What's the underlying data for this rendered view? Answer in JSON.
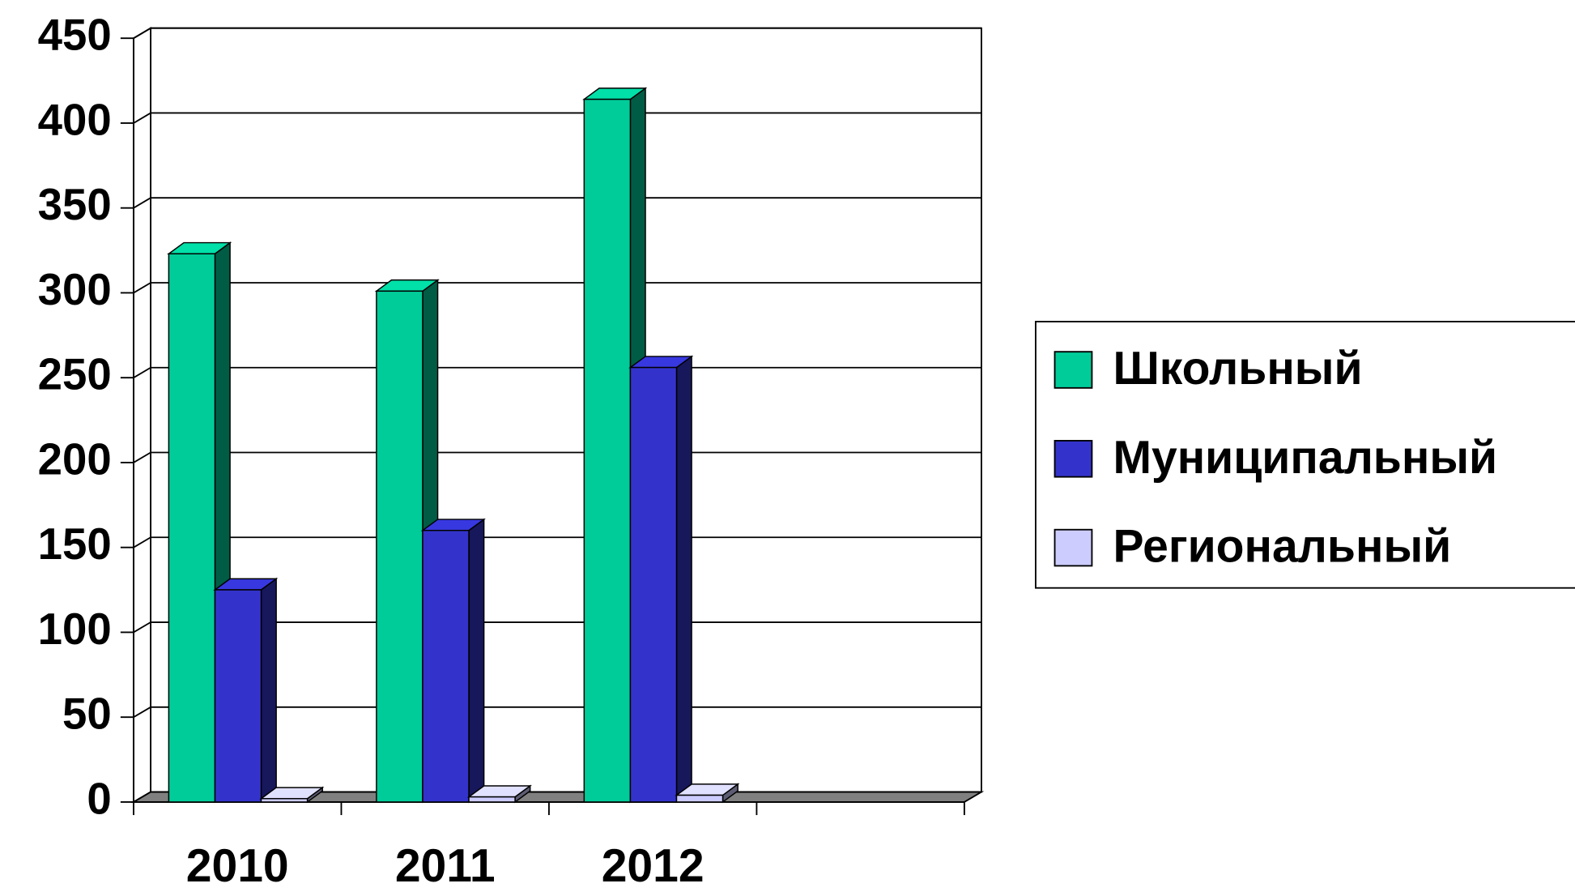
{
  "chart_data": {
    "type": "bar3d",
    "categories": [
      "2010",
      "2011",
      "2012",
      null
    ],
    "series": [
      {
        "name": "Школьный",
        "color": "#00cc99",
        "values": [
          323,
          301,
          414,
          null
        ]
      },
      {
        "name": "Муниципальный",
        "color": "#3333cc",
        "values": [
          125,
          160,
          256,
          null
        ]
      },
      {
        "name": "Региональный",
        "color": "#ccccff",
        "values": [
          2,
          3,
          4,
          null
        ]
      }
    ],
    "ylim": [
      0,
      450
    ],
    "yticks": [
      0,
      50,
      100,
      150,
      200,
      250,
      300,
      350,
      400,
      450
    ],
    "grid": true,
    "legend": "right"
  }
}
